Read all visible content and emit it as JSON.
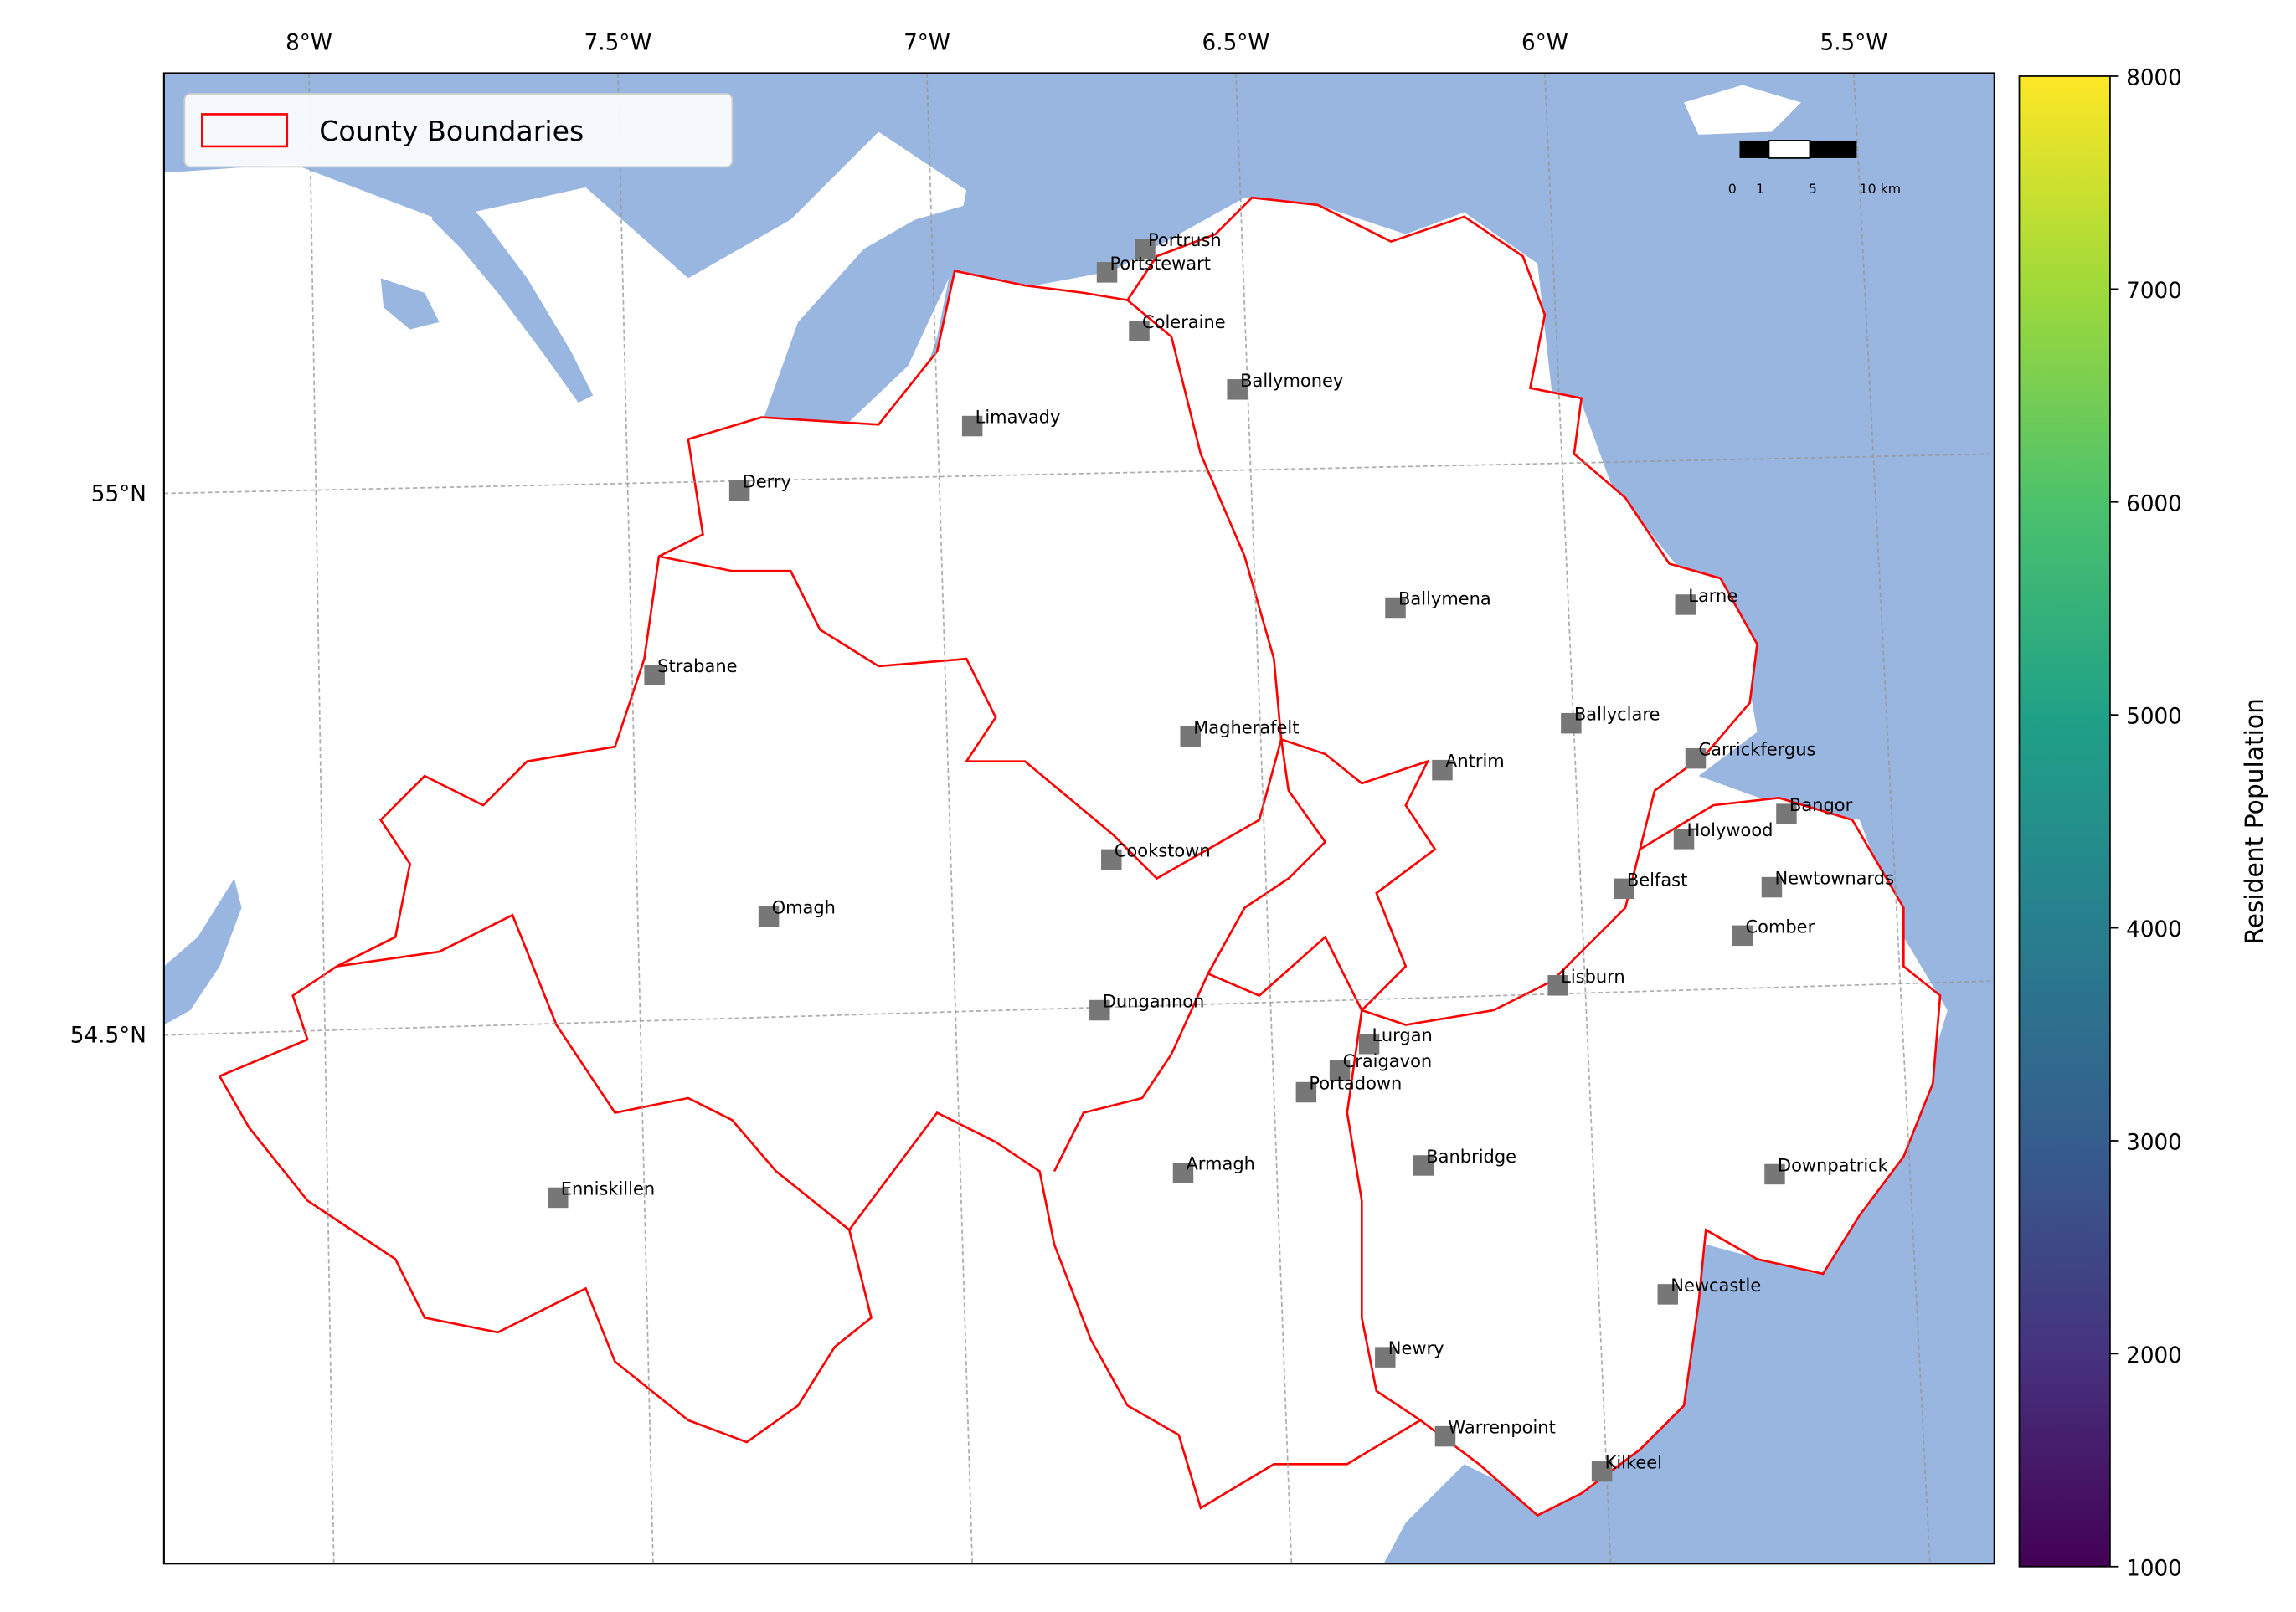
{
  "map": {
    "axes": {
      "lon_ticks": [
        {
          "value": -8,
          "label": "8°W"
        },
        {
          "value": -7.5,
          "label": "7.5°W"
        },
        {
          "value": -7,
          "label": "7°W"
        },
        {
          "value": -6.5,
          "label": "6.5°W"
        },
        {
          "value": -6,
          "label": "6°W"
        },
        {
          "value": -5.5,
          "label": "5.5°W"
        }
      ],
      "lat_ticks": [
        {
          "value": 55,
          "label": "55°N"
        },
        {
          "value": 54.5,
          "label": "54.5°N"
        }
      ]
    },
    "legend": {
      "label": "County Boundaries"
    },
    "towns": [
      "Portrush",
      "Portstewart",
      "Coleraine",
      "Ballymoney",
      "Limavady",
      "Derry",
      "Strabane",
      "Ballymena",
      "Larne",
      "Magherafelt",
      "Ballyclare",
      "Antrim",
      "Carrickfergus",
      "Bangor",
      "Holywood",
      "Cookstown",
      "Belfast",
      "Newtownards",
      "Omagh",
      "Comber",
      "Lisburn",
      "Dungannon",
      "Lurgan",
      "Craigavon",
      "Portadown",
      "Armagh",
      "Banbridge",
      "Downpatrick",
      "Enniskillen",
      "Newcastle",
      "Newry",
      "Warrenpoint",
      "Kilkeel"
    ],
    "scale_bar": {
      "labels": [
        "0",
        "1",
        "5",
        "10 km"
      ]
    },
    "colorbar": {
      "label": "Resident Population",
      "lim": [
        1000,
        8000
      ],
      "ticks": [
        1000,
        2000,
        3000,
        4000,
        5000,
        6000,
        7000,
        8000
      ]
    }
  }
}
